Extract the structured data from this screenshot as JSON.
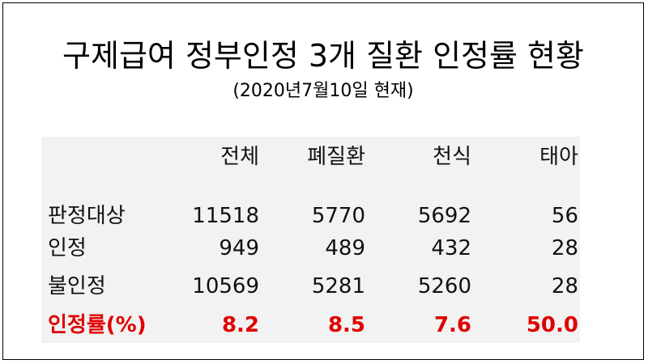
{
  "title": "구제급여 정부인정 3개 질환 인정률 현황",
  "subtitle": "(2020년7월10일 현재)",
  "table": {
    "columns": [
      "전체",
      "폐질환",
      "천식",
      "태아"
    ],
    "rows": [
      {
        "label": "판정대상",
        "cells": [
          "11518",
          "5770",
          "5692",
          "56"
        ]
      },
      {
        "label": "인정",
        "cells": [
          "949",
          "489",
          "432",
          "28"
        ]
      },
      {
        "label": "불인정",
        "cells": [
          "10569",
          "5281",
          "5260",
          "28"
        ]
      },
      {
        "label": "인정률(%)",
        "cells": [
          "8.2",
          "8.5",
          "7.6",
          "50.0"
        ]
      }
    ]
  }
}
